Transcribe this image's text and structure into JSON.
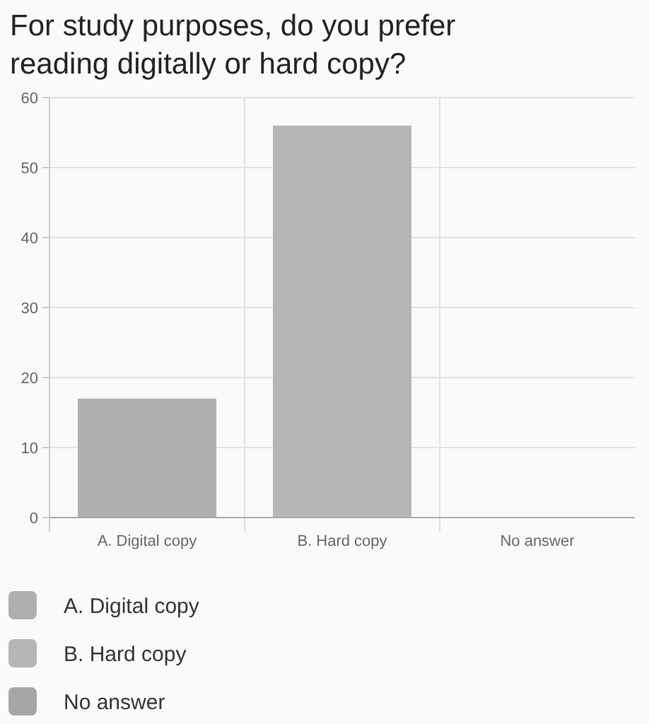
{
  "chart_data": {
    "type": "bar",
    "title": "For study purposes, do you prefer reading digitally or hard copy?",
    "categories": [
      "A. Digital copy",
      "B. Hard copy",
      "No answer"
    ],
    "series": [
      {
        "name": "A. Digital copy",
        "color": "#afafaf",
        "values": [
          17,
          null,
          null
        ]
      },
      {
        "name": "B. Hard copy",
        "color": "#b6b6b6",
        "values": [
          null,
          56,
          null
        ]
      },
      {
        "name": "No answer",
        "color": "#a6a6a6",
        "values": [
          null,
          null,
          0
        ]
      }
    ],
    "ylim": [
      0,
      60
    ],
    "yticks": [
      0,
      10,
      20,
      30,
      40,
      50,
      60
    ],
    "grid": true,
    "legend": "bottom"
  }
}
